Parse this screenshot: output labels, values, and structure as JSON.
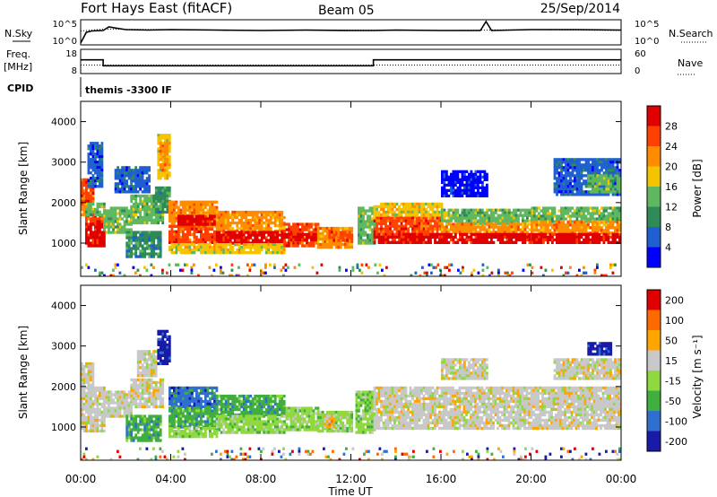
{
  "header": {
    "station": "Fort Hays East (fitACF)",
    "beam": "Beam 05",
    "date": "25/Sep/2014"
  },
  "colors": {
    "power": [
      "#0000ff",
      "#1f5fd0",
      "#2e8b57",
      "#5fb85f",
      "#f5c400",
      "#ff8c00",
      "#ff4000",
      "#e00000"
    ],
    "velocity": [
      "#1a1aa8",
      "#2f6fcf",
      "#3faf3f",
      "#8fd83f",
      "#c8c8c8",
      "#ffa500",
      "#ff6a00",
      "#e00000"
    ]
  },
  "chart_data": [
    {
      "type": "line",
      "name": "noise-panel",
      "left_label": "N.Sky",
      "right_label": "N.Search",
      "left_ticks": [
        "10^5",
        "10^0"
      ],
      "right_ticks": [
        "10^5",
        "10^0"
      ],
      "series": [
        {
          "name": "N.Sky",
          "x": [
            0,
            0.25,
            0.5,
            1,
            1.25,
            2,
            3,
            4,
            6,
            8,
            10,
            12,
            13,
            14,
            16,
            17.75,
            18,
            18.25,
            20,
            22,
            24
          ],
          "y": [
            0.2,
            2.6,
            2.9,
            3.0,
            3.8,
            3.2,
            3.1,
            3.2,
            3.1,
            3.0,
            3.1,
            3.0,
            3.0,
            3.1,
            3.0,
            3.0,
            5.0,
            3.0,
            3.2,
            3.2,
            3.1
          ]
        },
        {
          "name": "N.Search",
          "x": [
            0,
            1,
            4,
            8,
            12,
            16,
            20,
            24
          ],
          "y": [
            2.9,
            3.3,
            3.2,
            3.0,
            3.1,
            3.0,
            3.2,
            3.0
          ]
        }
      ]
    },
    {
      "type": "line",
      "name": "frequency-panel",
      "left_label": "Freq.",
      "left_unit": "[MHz]",
      "right_label": "Nave",
      "left_ticks": [
        "18",
        "8"
      ],
      "right_ticks": [
        "60",
        "0"
      ],
      "series": [
        {
          "name": "Freq.",
          "x": [
            0,
            1,
            1,
            13,
            13,
            24
          ],
          "y": [
            14,
            14,
            10,
            10,
            14,
            14
          ]
        },
        {
          "name": "Nave",
          "x": [
            0,
            24
          ],
          "y": [
            10.5,
            10.5
          ]
        }
      ]
    },
    {
      "type": "table",
      "name": "cpid-panel",
      "label": "CPID",
      "program": "themis -3300 IF"
    },
    {
      "type": "heatmap",
      "name": "power",
      "ylabel": "Slant Range [km]",
      "colorbar_label": "Power [dB]",
      "colorbar_ticks": [
        4,
        8,
        12,
        16,
        20,
        24,
        28
      ],
      "ylim": [
        180,
        4500
      ],
      "yticks": [
        1000,
        2000,
        3000,
        4000
      ],
      "xlim": [
        0,
        24
      ],
      "xticks": [
        0,
        4,
        8,
        12,
        16,
        20,
        24
      ],
      "bands": [
        {
          "x0": 0.0,
          "x1": 0.5,
          "r0": 1700,
          "r1": 2600,
          "level": 5
        },
        {
          "x0": 0.0,
          "x1": 0.5,
          "r0": 2000,
          "r1": 2600,
          "level": 6
        },
        {
          "x0": 0.2,
          "x1": 1.0,
          "r0": 1500,
          "r1": 1700,
          "level": 6
        },
        {
          "x0": 0.2,
          "x1": 1.0,
          "r0": 950,
          "r1": 1500,
          "level": 7
        },
        {
          "x0": 0.2,
          "x1": 1.0,
          "r0": 1700,
          "r1": 2000,
          "level": 3
        },
        {
          "x0": 0.3,
          "x1": 0.9,
          "r0": 2400,
          "r1": 3500,
          "level": 1
        },
        {
          "x0": 1.0,
          "x1": 2.2,
          "r0": 1300,
          "r1": 1900,
          "level": 3
        },
        {
          "x0": 1.5,
          "x1": 3.0,
          "r0": 2300,
          "r1": 2900,
          "level": 1
        },
        {
          "x0": 2.0,
          "x1": 3.5,
          "r0": 700,
          "r1": 1300,
          "level": 2
        },
        {
          "x0": 2.2,
          "x1": 3.6,
          "r0": 1500,
          "r1": 2200,
          "level": 3
        },
        {
          "x0": 3.2,
          "x1": 3.9,
          "r0": 1800,
          "r1": 2400,
          "level": 2
        },
        {
          "x0": 3.4,
          "x1": 3.9,
          "r0": 2600,
          "r1": 3700,
          "level": 4
        },
        {
          "x0": 3.5,
          "x1": 3.8,
          "r0": 2800,
          "r1": 3500,
          "level": 5
        },
        {
          "x0": 3.9,
          "x1": 6.0,
          "r0": 1450,
          "r1": 2050,
          "level": 5
        },
        {
          "x0": 3.9,
          "x1": 6.0,
          "r0": 1000,
          "r1": 1450,
          "level": 6
        },
        {
          "x0": 3.9,
          "x1": 6.0,
          "r0": 800,
          "r1": 1000,
          "level": 4
        },
        {
          "x0": 4.3,
          "x1": 6.0,
          "r0": 1500,
          "r1": 1700,
          "level": 7
        },
        {
          "x0": 6.0,
          "x1": 9.0,
          "r0": 1300,
          "r1": 1800,
          "level": 5
        },
        {
          "x0": 6.0,
          "x1": 9.0,
          "r0": 1000,
          "r1": 1300,
          "level": 7
        },
        {
          "x0": 6.0,
          "x1": 9.0,
          "r0": 800,
          "r1": 1000,
          "level": 4
        },
        {
          "x0": 9.0,
          "x1": 10.5,
          "r0": 950,
          "r1": 1500,
          "level": 6
        },
        {
          "x0": 9.0,
          "x1": 10.5,
          "r0": 1100,
          "r1": 1250,
          "level": 7
        },
        {
          "x0": 10.5,
          "x1": 12.0,
          "r0": 900,
          "r1": 1400,
          "level": 5
        },
        {
          "x0": 11.0,
          "x1": 12.0,
          "r0": 1100,
          "r1": 1300,
          "level": 6
        },
        {
          "x0": 12.3,
          "x1": 13.0,
          "r0": 1000,
          "r1": 1900,
          "level": 3
        },
        {
          "x0": 13.0,
          "x1": 16.0,
          "r0": 1650,
          "r1": 2000,
          "level": 4
        },
        {
          "x0": 13.0,
          "x1": 16.0,
          "r0": 1250,
          "r1": 1650,
          "level": 6
        },
        {
          "x0": 13.0,
          "x1": 16.0,
          "r0": 1050,
          "r1": 1250,
          "level": 7
        },
        {
          "x0": 16.0,
          "x1": 20.0,
          "r0": 1500,
          "r1": 1850,
          "level": 3
        },
        {
          "x0": 16.0,
          "x1": 20.0,
          "r0": 1250,
          "r1": 1500,
          "level": 5
        },
        {
          "x0": 16.0,
          "x1": 20.0,
          "r0": 1000,
          "r1": 1250,
          "level": 7
        },
        {
          "x0": 16.0,
          "x1": 18.0,
          "r0": 2200,
          "r1": 2800,
          "level": 0
        },
        {
          "x0": 20.0,
          "x1": 24.0,
          "r0": 1550,
          "r1": 1900,
          "level": 3
        },
        {
          "x0": 20.0,
          "x1": 24.0,
          "r0": 1250,
          "r1": 1550,
          "level": 5
        },
        {
          "x0": 20.0,
          "x1": 24.0,
          "r0": 1050,
          "r1": 1250,
          "level": 7
        },
        {
          "x0": 21.0,
          "x1": 24.0,
          "r0": 2200,
          "r1": 3100,
          "level": 1
        },
        {
          "x0": 22.5,
          "x1": 24.0,
          "r0": 2300,
          "r1": 2700,
          "level": 3
        },
        {
          "x0": 0.0,
          "x1": 24.0,
          "r0": 200,
          "r1": 500,
          "level": 0
        }
      ]
    },
    {
      "type": "heatmap",
      "name": "velocity",
      "ylabel": "Slant Range [km]",
      "xlabel": "Time UT",
      "colorbar_label": "Velocity [m s⁻¹]",
      "colorbar_ticks": [
        -200,
        -100,
        -50,
        -15,
        15,
        50,
        100,
        200
      ],
      "ylim": [
        180,
        4500
      ],
      "yticks": [
        1000,
        2000,
        3000,
        4000
      ],
      "xlim": [
        0,
        24
      ],
      "xticks": [
        0,
        4,
        8,
        12,
        16,
        20,
        24
      ],
      "xtick_labels": [
        "00:00",
        "04:00",
        "08:00",
        "12:00",
        "16:00",
        "20:00",
        "00:00"
      ],
      "bands": [
        {
          "x0": 0.0,
          "x1": 1.0,
          "r0": 900,
          "r1": 2000,
          "level": 4
        },
        {
          "x0": 0.0,
          "x1": 0.5,
          "r0": 2000,
          "r1": 2600,
          "level": 4
        },
        {
          "x0": 1.0,
          "x1": 2.2,
          "r0": 1300,
          "r1": 1900,
          "level": 4
        },
        {
          "x0": 2.2,
          "x1": 3.6,
          "r0": 1500,
          "r1": 2200,
          "level": 4
        },
        {
          "x0": 2.0,
          "x1": 3.5,
          "r0": 700,
          "r1": 1300,
          "level": 2
        },
        {
          "x0": 2.5,
          "x1": 3.3,
          "r0": 2300,
          "r1": 2900,
          "level": 4
        },
        {
          "x0": 3.4,
          "x1": 3.9,
          "r0": 2600,
          "r1": 3400,
          "level": 0
        },
        {
          "x0": 3.9,
          "x1": 6.0,
          "r0": 1500,
          "r1": 2000,
          "level": 1
        },
        {
          "x0": 3.9,
          "x1": 6.0,
          "r0": 1000,
          "r1": 1500,
          "level": 2
        },
        {
          "x0": 3.9,
          "x1": 6.0,
          "r0": 800,
          "r1": 1000,
          "level": 3
        },
        {
          "x0": 6.0,
          "x1": 9.0,
          "r0": 1300,
          "r1": 1800,
          "level": 2
        },
        {
          "x0": 6.0,
          "x1": 9.0,
          "r0": 900,
          "r1": 1300,
          "level": 3
        },
        {
          "x0": 9.0,
          "x1": 10.5,
          "r0": 950,
          "r1": 1500,
          "level": 3
        },
        {
          "x0": 10.5,
          "x1": 12.0,
          "r0": 900,
          "r1": 1400,
          "level": 3
        },
        {
          "x0": 10.8,
          "x1": 11.2,
          "r0": 1000,
          "r1": 1300,
          "level": 5
        },
        {
          "x0": 12.2,
          "x1": 13.0,
          "r0": 900,
          "r1": 1900,
          "level": 3
        },
        {
          "x0": 13.0,
          "x1": 24.0,
          "r0": 1000,
          "r1": 2000,
          "level": 4
        },
        {
          "x0": 16.0,
          "x1": 18.0,
          "r0": 2200,
          "r1": 2700,
          "level": 4
        },
        {
          "x0": 21.0,
          "x1": 24.0,
          "r0": 2200,
          "r1": 2700,
          "level": 4
        },
        {
          "x0": 22.5,
          "x1": 23.5,
          "r0": 2800,
          "r1": 3100,
          "level": 0
        },
        {
          "x0": 0.0,
          "x1": 24.0,
          "r0": 200,
          "r1": 500,
          "level": 3
        }
      ]
    }
  ]
}
